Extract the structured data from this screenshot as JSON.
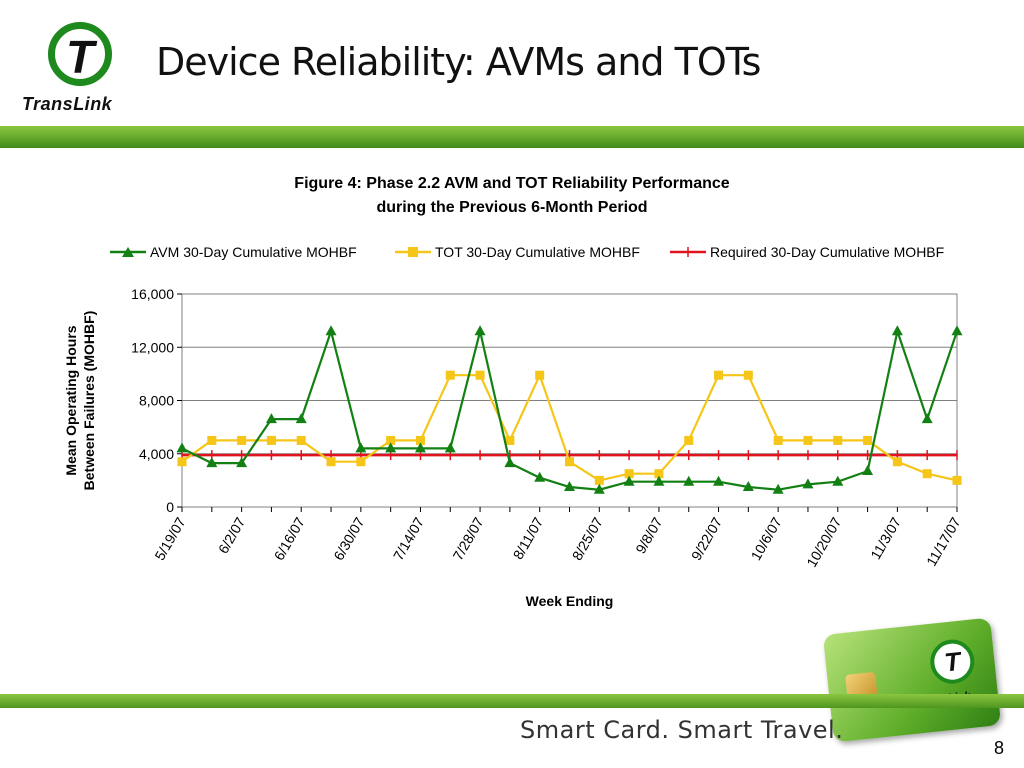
{
  "slide": {
    "title": "Device Reliability: AVMs and TOTs",
    "logo_text": "TransLink",
    "logo_letter": "T",
    "tagline": "Smart Card. Smart Travel.",
    "page_number": "8"
  },
  "colors": {
    "avm": "#138013",
    "tot": "#f5c518",
    "required": "#e0141e",
    "brand_green": "#5fa52a"
  },
  "chart_data": {
    "type": "line",
    "title": "Figure 4: Phase 2.2 AVM and TOT Reliability Performance",
    "subtitle": "during the Previous 6-Month Period",
    "xlabel": "Week Ending",
    "ylabel_lines": [
      "Mean Operating Hours",
      "Between Failures (MOHBF)"
    ],
    "ylim": [
      0,
      16000
    ],
    "yticks": [
      0,
      4000,
      8000,
      12000,
      16000
    ],
    "ytick_labels": [
      "0",
      "4,000",
      "8,000",
      "12,000",
      "16,000"
    ],
    "xtick_labels": [
      "5/19/07",
      "6/2/07",
      "6/16/07",
      "6/30/07",
      "7/14/07",
      "7/28/07",
      "8/11/07",
      "8/25/07",
      "9/8/07",
      "9/22/07",
      "10/6/07",
      "10/20/07",
      "11/3/07",
      "11/17/07"
    ],
    "grid": true,
    "legend_position": "top",
    "x": [
      "5/19/07",
      "5/26/07",
      "6/2/07",
      "6/9/07",
      "6/16/07",
      "6/23/07",
      "6/30/07",
      "7/7/07",
      "7/14/07",
      "7/21/07",
      "7/28/07",
      "8/4/07",
      "8/11/07",
      "8/18/07",
      "8/25/07",
      "9/1/07",
      "9/8/07",
      "9/15/07",
      "9/22/07",
      "9/29/07",
      "10/6/07",
      "10/13/07",
      "10/20/07",
      "10/27/07",
      "11/3/07",
      "11/10/07",
      "11/17/07"
    ],
    "series": [
      {
        "name": "AVM 30-Day Cumulative MOHBF",
        "marker": "triangle",
        "values": [
          4400,
          3300,
          3300,
          6600,
          6600,
          13200,
          4400,
          4400,
          4400,
          4400,
          13200,
          3300,
          2200,
          1500,
          1300,
          1900,
          1900,
          1900,
          1900,
          1500,
          1300,
          1700,
          1900,
          2700,
          13200,
          6600,
          13200
        ]
      },
      {
        "name": "TOT 30-Day Cumulative MOHBF",
        "marker": "square",
        "values": [
          3400,
          5000,
          5000,
          5000,
          5000,
          3400,
          3400,
          5000,
          5000,
          9900,
          9900,
          5000,
          9900,
          3400,
          2000,
          2500,
          2500,
          5000,
          9900,
          9900,
          5000,
          5000,
          5000,
          5000,
          3400,
          2500,
          2000
        ]
      },
      {
        "name": "Required 30-Day Cumulative MOHBF",
        "marker": "plus",
        "values": [
          3900,
          3900,
          3900,
          3900,
          3900,
          3900,
          3900,
          3900,
          3900,
          3900,
          3900,
          3900,
          3900,
          3900,
          3900,
          3900,
          3900,
          3900,
          3900,
          3900,
          3900,
          3900,
          3900,
          3900,
          3900,
          3900,
          3900
        ]
      }
    ]
  }
}
